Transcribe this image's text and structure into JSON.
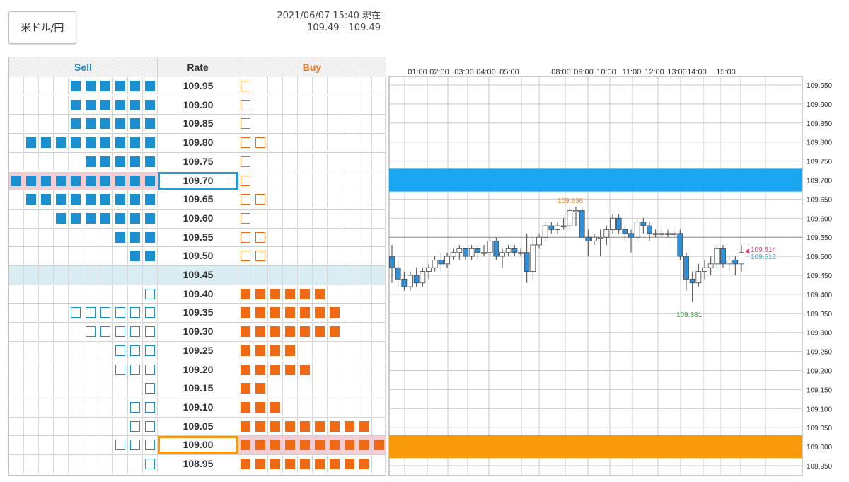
{
  "pair_label": "米ドル/円",
  "timestamp": "2021/06/07 15:40 現在",
  "bid_ask": "109.49 - 109.49",
  "headers": {
    "sell": "Sell",
    "rate": "Rate",
    "buy": "Buy"
  },
  "colors": {
    "sell": "#1b8fd0",
    "buy": "#f06a16",
    "current_band": "#d9edf2",
    "highlight": "#f2cdd3",
    "up_candle": "#ffffff",
    "down_candle": "#2f8fd8"
  },
  "order_book": [
    {
      "rate": "109.95",
      "sell": 6,
      "sell_type": "filled",
      "buy": 1,
      "buy_type": "outline"
    },
    {
      "rate": "109.90",
      "sell": 6,
      "sell_type": "filled",
      "buy": 1,
      "buy_type": "outline"
    },
    {
      "rate": "109.85",
      "sell": 6,
      "sell_type": "filled",
      "buy": 1,
      "buy_type": "outline"
    },
    {
      "rate": "109.80",
      "sell": 9,
      "sell_type": "filled",
      "buy": 2,
      "buy_type": "outline"
    },
    {
      "rate": "109.75",
      "sell": 5,
      "sell_type": "filled",
      "buy": 1,
      "buy_type": "outline"
    },
    {
      "rate": "109.70",
      "sell": 10,
      "sell_type": "filled",
      "buy": 1,
      "buy_type": "outline",
      "selected": "blue"
    },
    {
      "rate": "109.65",
      "sell": 9,
      "sell_type": "filled",
      "buy": 2,
      "buy_type": "outline"
    },
    {
      "rate": "109.60",
      "sell": 7,
      "sell_type": "filled",
      "buy": 1,
      "buy_type": "outline"
    },
    {
      "rate": "109.55",
      "sell": 3,
      "sell_type": "filled",
      "buy": 2,
      "buy_type": "outline"
    },
    {
      "rate": "109.50",
      "sell": 2,
      "sell_type": "filled",
      "buy": 2,
      "buy_type": "outline"
    },
    {
      "rate": "109.45",
      "sell": 0,
      "sell_type": "filled",
      "buy": 0,
      "buy_type": "filled",
      "current": true
    },
    {
      "rate": "109.40",
      "sell": 1,
      "sell_type": "outline",
      "buy": 6,
      "buy_type": "filled"
    },
    {
      "rate": "109.35",
      "sell": 6,
      "sell_type": "outline",
      "buy": 7,
      "buy_type": "filled"
    },
    {
      "rate": "109.30",
      "sell": 5,
      "sell_type": "outline",
      "buy": 7,
      "buy_type": "filled"
    },
    {
      "rate": "109.25",
      "sell": 3,
      "sell_type": "outline",
      "buy": 4,
      "buy_type": "filled"
    },
    {
      "rate": "109.20",
      "sell": 3,
      "sell_type": "outline",
      "buy": 5,
      "buy_type": "filled"
    },
    {
      "rate": "109.15",
      "sell": 1,
      "sell_type": "outline",
      "buy": 2,
      "buy_type": "filled"
    },
    {
      "rate": "109.10",
      "sell": 2,
      "sell_type": "outline",
      "buy": 3,
      "buy_type": "filled"
    },
    {
      "rate": "109.05",
      "sell": 2,
      "sell_type": "outline",
      "buy": 9,
      "buy_type": "filled"
    },
    {
      "rate": "109.00",
      "sell": 3,
      "sell_type": "outline",
      "buy": 10,
      "buy_type": "filled",
      "selected": "orange"
    },
    {
      "rate": "108.95",
      "sell": 1,
      "sell_type": "outline",
      "buy": 9,
      "buy_type": "filled"
    }
  ],
  "chart_data": {
    "type": "candlestick",
    "time_labels": [
      "01:00",
      "02:00",
      "03:00",
      "04:00",
      "05:00",
      "08:00",
      "09:00",
      "10:00",
      "11:00",
      "12:00",
      "13:00",
      "14:00",
      "15:00"
    ],
    "y_ticks": [
      "109.950",
      "109.900",
      "109.850",
      "109.800",
      "109.750",
      "109.700",
      "109.650",
      "109.600",
      "109.550",
      "109.500",
      "109.450",
      "109.400",
      "109.350",
      "109.300",
      "109.250",
      "109.200",
      "109.150",
      "109.100",
      "109.050",
      "109.000",
      "108.950"
    ],
    "ylim": [
      108.95,
      109.95
    ],
    "sell_band": {
      "from": 109.67,
      "to": 109.73,
      "color": "#17a6ef"
    },
    "buy_band": {
      "from": 108.97,
      "to": 109.03,
      "color": "#f99a0a"
    },
    "hline": 109.55,
    "high_label": "109.636",
    "low_label": "109.381",
    "price_label_ask": "109.514",
    "price_label_bid": "109.512",
    "candles": [
      [
        109.5,
        109.53,
        109.43,
        109.47
      ],
      [
        109.47,
        109.49,
        109.42,
        109.44
      ],
      [
        109.44,
        109.46,
        109.41,
        109.42
      ],
      [
        109.42,
        109.46,
        109.41,
        109.45
      ],
      [
        109.45,
        109.47,
        109.42,
        109.43
      ],
      [
        109.43,
        109.47,
        109.42,
        109.46
      ],
      [
        109.46,
        109.48,
        109.44,
        109.47
      ],
      [
        109.47,
        109.5,
        109.46,
        109.49
      ],
      [
        109.49,
        109.51,
        109.46,
        109.48
      ],
      [
        109.48,
        109.51,
        109.47,
        109.5
      ],
      [
        109.5,
        109.52,
        109.49,
        109.51
      ],
      [
        109.51,
        109.53,
        109.49,
        109.52
      ],
      [
        109.52,
        109.52,
        109.49,
        109.5
      ],
      [
        109.5,
        109.53,
        109.49,
        109.52
      ],
      [
        109.52,
        109.53,
        109.49,
        109.51
      ],
      [
        109.51,
        109.53,
        109.5,
        109.51
      ],
      [
        109.51,
        109.55,
        109.5,
        109.54
      ],
      [
        109.54,
        109.55,
        109.49,
        109.5
      ],
      [
        109.5,
        109.52,
        109.47,
        109.51
      ],
      [
        109.51,
        109.53,
        109.5,
        109.52
      ],
      [
        109.52,
        109.53,
        109.5,
        109.51
      ],
      [
        109.51,
        109.52,
        109.5,
        109.51
      ],
      [
        109.51,
        109.56,
        109.43,
        109.46
      ],
      [
        109.46,
        109.55,
        109.44,
        109.53
      ],
      [
        109.53,
        109.56,
        109.52,
        109.55
      ],
      [
        109.55,
        109.59,
        109.54,
        109.58
      ],
      [
        109.58,
        109.59,
        109.56,
        109.57
      ],
      [
        109.57,
        109.59,
        109.56,
        109.58
      ],
      [
        109.58,
        109.6,
        109.57,
        109.58
      ],
      [
        109.58,
        109.63,
        109.57,
        109.62
      ],
      [
        109.62,
        109.63,
        109.58,
        109.62
      ],
      [
        109.62,
        109.63,
        109.55,
        109.55
      ],
      [
        109.55,
        109.57,
        109.5,
        109.54
      ],
      [
        109.54,
        109.56,
        109.53,
        109.55
      ],
      [
        109.55,
        109.57,
        109.5,
        109.55
      ],
      [
        109.55,
        109.58,
        109.53,
        109.57
      ],
      [
        109.57,
        109.61,
        109.56,
        109.6
      ],
      [
        109.6,
        109.61,
        109.56,
        109.57
      ],
      [
        109.57,
        109.58,
        109.54,
        109.56
      ],
      [
        109.56,
        109.57,
        109.51,
        109.55
      ],
      [
        109.55,
        109.6,
        109.54,
        109.59
      ],
      [
        109.59,
        109.6,
        109.56,
        109.58
      ],
      [
        109.58,
        109.59,
        109.54,
        109.56
      ],
      [
        109.56,
        109.57,
        109.55,
        109.56
      ],
      [
        109.56,
        109.57,
        109.55,
        109.56
      ],
      [
        109.56,
        109.57,
        109.55,
        109.56
      ],
      [
        109.56,
        109.57,
        109.55,
        109.56
      ],
      [
        109.56,
        109.57,
        109.49,
        109.5
      ],
      [
        109.5,
        109.51,
        109.41,
        109.44
      ],
      [
        109.44,
        109.46,
        109.38,
        109.43
      ],
      [
        109.43,
        109.48,
        109.42,
        109.46
      ],
      [
        109.46,
        109.49,
        109.44,
        109.47
      ],
      [
        109.47,
        109.5,
        109.45,
        109.48
      ],
      [
        109.48,
        109.53,
        109.47,
        109.52
      ],
      [
        109.52,
        109.53,
        109.47,
        109.48
      ],
      [
        109.48,
        109.5,
        109.46,
        109.49
      ],
      [
        109.49,
        109.5,
        109.45,
        109.48
      ],
      [
        109.48,
        109.53,
        109.46,
        109.51
      ]
    ]
  }
}
